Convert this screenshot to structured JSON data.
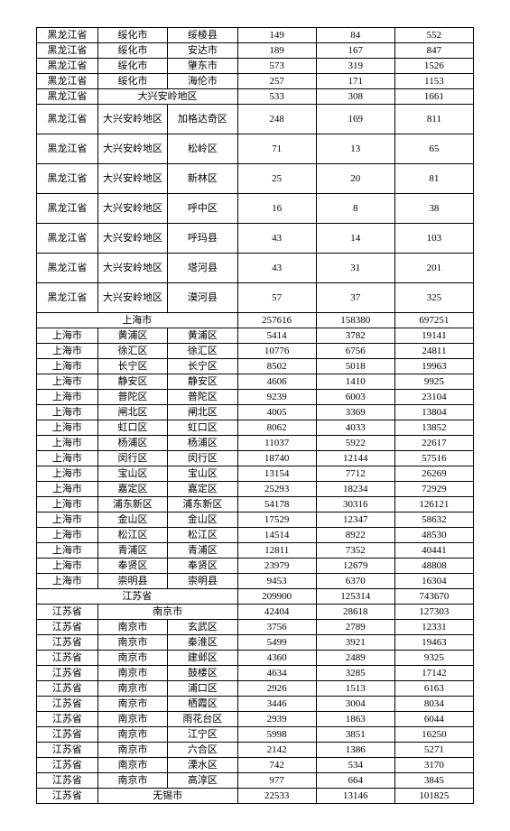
{
  "table": {
    "rows": [
      {
        "c1": "黑龙江省",
        "c2": "绥化市",
        "c3": "绥棱县",
        "c4": "149",
        "c5": "84",
        "c6": "552"
      },
      {
        "c1": "黑龙江省",
        "c2": "绥化市",
        "c3": "安达市",
        "c4": "189",
        "c5": "167",
        "c6": "847"
      },
      {
        "c1": "黑龙江省",
        "c2": "绥化市",
        "c3": "肇东市",
        "c4": "573",
        "c5": "319",
        "c6": "1526"
      },
      {
        "c1": "黑龙江省",
        "c2": "绥化市",
        "c3": "海伦市",
        "c4": "257",
        "c5": "171",
        "c6": "1153"
      },
      {
        "c1": "黑龙江省",
        "c2": "大兴安岭地区",
        "span": 2,
        "c4": "533",
        "c5": "308",
        "c6": "1661"
      },
      {
        "c1": "黑龙江省",
        "c2": "大兴安岭地区",
        "c3": "加格达奇区",
        "c4": "248",
        "c5": "169",
        "c6": "811",
        "tall": true
      },
      {
        "c1": "黑龙江省",
        "c2": "大兴安岭地区",
        "c3": "松岭区",
        "c4": "71",
        "c5": "13",
        "c6": "65",
        "tall": true
      },
      {
        "c1": "黑龙江省",
        "c2": "大兴安岭地区",
        "c3": "新林区",
        "c4": "25",
        "c5": "20",
        "c6": "81",
        "tall": true
      },
      {
        "c1": "黑龙江省",
        "c2": "大兴安岭地区",
        "c3": "呼中区",
        "c4": "16",
        "c5": "8",
        "c6": "38",
        "tall": true
      },
      {
        "c1": "黑龙江省",
        "c2": "大兴安岭地区",
        "c3": "呼玛县",
        "c4": "43",
        "c5": "14",
        "c6": "103",
        "tall": true
      },
      {
        "c1": "黑龙江省",
        "c2": "大兴安岭地区",
        "c3": "塔河县",
        "c4": "43",
        "c5": "31",
        "c6": "201",
        "tall": true
      },
      {
        "c1": "黑龙江省",
        "c2": "大兴安岭地区",
        "c3": "漠河县",
        "c4": "57",
        "c5": "37",
        "c6": "325",
        "tall": true
      },
      {
        "c1": "上海市",
        "span": 3,
        "c4": "257616",
        "c5": "158380",
        "c6": "697251"
      },
      {
        "c1": "上海市",
        "c2": "黄浦区",
        "c3": "黄浦区",
        "c4": "5414",
        "c5": "3782",
        "c6": "19141"
      },
      {
        "c1": "上海市",
        "c2": "徐汇区",
        "c3": "徐汇区",
        "c4": "10776",
        "c5": "6756",
        "c6": "24811"
      },
      {
        "c1": "上海市",
        "c2": "长宁区",
        "c3": "长宁区",
        "c4": "8502",
        "c5": "5018",
        "c6": "19963"
      },
      {
        "c1": "上海市",
        "c2": "静安区",
        "c3": "静安区",
        "c4": "4606",
        "c5": "1410",
        "c6": "9925"
      },
      {
        "c1": "上海市",
        "c2": "普陀区",
        "c3": "普陀区",
        "c4": "9239",
        "c5": "6003",
        "c6": "23104"
      },
      {
        "c1": "上海市",
        "c2": "闸北区",
        "c3": "闸北区",
        "c4": "4005",
        "c5": "3369",
        "c6": "13804"
      },
      {
        "c1": "上海市",
        "c2": "虹口区",
        "c3": "虹口区",
        "c4": "8062",
        "c5": "4033",
        "c6": "13852"
      },
      {
        "c1": "上海市",
        "c2": "杨浦区",
        "c3": "杨浦区",
        "c4": "11037",
        "c5": "5922",
        "c6": "22617"
      },
      {
        "c1": "上海市",
        "c2": "闵行区",
        "c3": "闵行区",
        "c4": "18740",
        "c5": "12144",
        "c6": "57516"
      },
      {
        "c1": "上海市",
        "c2": "宝山区",
        "c3": "宝山区",
        "c4": "13154",
        "c5": "7712",
        "c6": "26269"
      },
      {
        "c1": "上海市",
        "c2": "嘉定区",
        "c3": "嘉定区",
        "c4": "25293",
        "c5": "18234",
        "c6": "72929"
      },
      {
        "c1": "上海市",
        "c2": "浦东新区",
        "c3": "浦东新区",
        "c4": "54178",
        "c5": "30316",
        "c6": "126121"
      },
      {
        "c1": "上海市",
        "c2": "金山区",
        "c3": "金山区",
        "c4": "17529",
        "c5": "12347",
        "c6": "58632"
      },
      {
        "c1": "上海市",
        "c2": "松江区",
        "c3": "松江区",
        "c4": "14514",
        "c5": "8922",
        "c6": "48530"
      },
      {
        "c1": "上海市",
        "c2": "青浦区",
        "c3": "青浦区",
        "c4": "12811",
        "c5": "7352",
        "c6": "40441"
      },
      {
        "c1": "上海市",
        "c2": "奉贤区",
        "c3": "奉贤区",
        "c4": "23979",
        "c5": "12679",
        "c6": "48808"
      },
      {
        "c1": "上海市",
        "c2": "崇明县",
        "c3": "崇明县",
        "c4": "9453",
        "c5": "6370",
        "c6": "16304"
      },
      {
        "c1": "江苏省",
        "span": 3,
        "c4": "209900",
        "c5": "125314",
        "c6": "743670"
      },
      {
        "c1": "江苏省",
        "c2": "南京市",
        "span": 2,
        "c4": "42404",
        "c5": "28618",
        "c6": "127303"
      },
      {
        "c1": "江苏省",
        "c2": "南京市",
        "c3": "玄武区",
        "c4": "3756",
        "c5": "2789",
        "c6": "12331"
      },
      {
        "c1": "江苏省",
        "c2": "南京市",
        "c3": "秦淮区",
        "c4": "5499",
        "c5": "3921",
        "c6": "19463"
      },
      {
        "c1": "江苏省",
        "c2": "南京市",
        "c3": "建邺区",
        "c4": "4360",
        "c5": "2489",
        "c6": "9325"
      },
      {
        "c1": "江苏省",
        "c2": "南京市",
        "c3": "鼓楼区",
        "c4": "4634",
        "c5": "3285",
        "c6": "17142"
      },
      {
        "c1": "江苏省",
        "c2": "南京市",
        "c3": "浦口区",
        "c4": "2926",
        "c5": "1513",
        "c6": "6163"
      },
      {
        "c1": "江苏省",
        "c2": "南京市",
        "c3": "栖霞区",
        "c4": "3446",
        "c5": "3004",
        "c6": "8034"
      },
      {
        "c1": "江苏省",
        "c2": "南京市",
        "c3": "雨花台区",
        "c4": "2939",
        "c5": "1863",
        "c6": "6044"
      },
      {
        "c1": "江苏省",
        "c2": "南京市",
        "c3": "江宁区",
        "c4": "5998",
        "c5": "3851",
        "c6": "16250"
      },
      {
        "c1": "江苏省",
        "c2": "南京市",
        "c3": "六合区",
        "c4": "2142",
        "c5": "1386",
        "c6": "5271"
      },
      {
        "c1": "江苏省",
        "c2": "南京市",
        "c3": "溧水区",
        "c4": "742",
        "c5": "534",
        "c6": "3170"
      },
      {
        "c1": "江苏省",
        "c2": "南京市",
        "c3": "高淳区",
        "c4": "977",
        "c5": "664",
        "c6": "3845"
      },
      {
        "c1": "江苏省",
        "c2": "无锡市",
        "span": 2,
        "c4": "22533",
        "c5": "13146",
        "c6": "101825"
      }
    ]
  }
}
